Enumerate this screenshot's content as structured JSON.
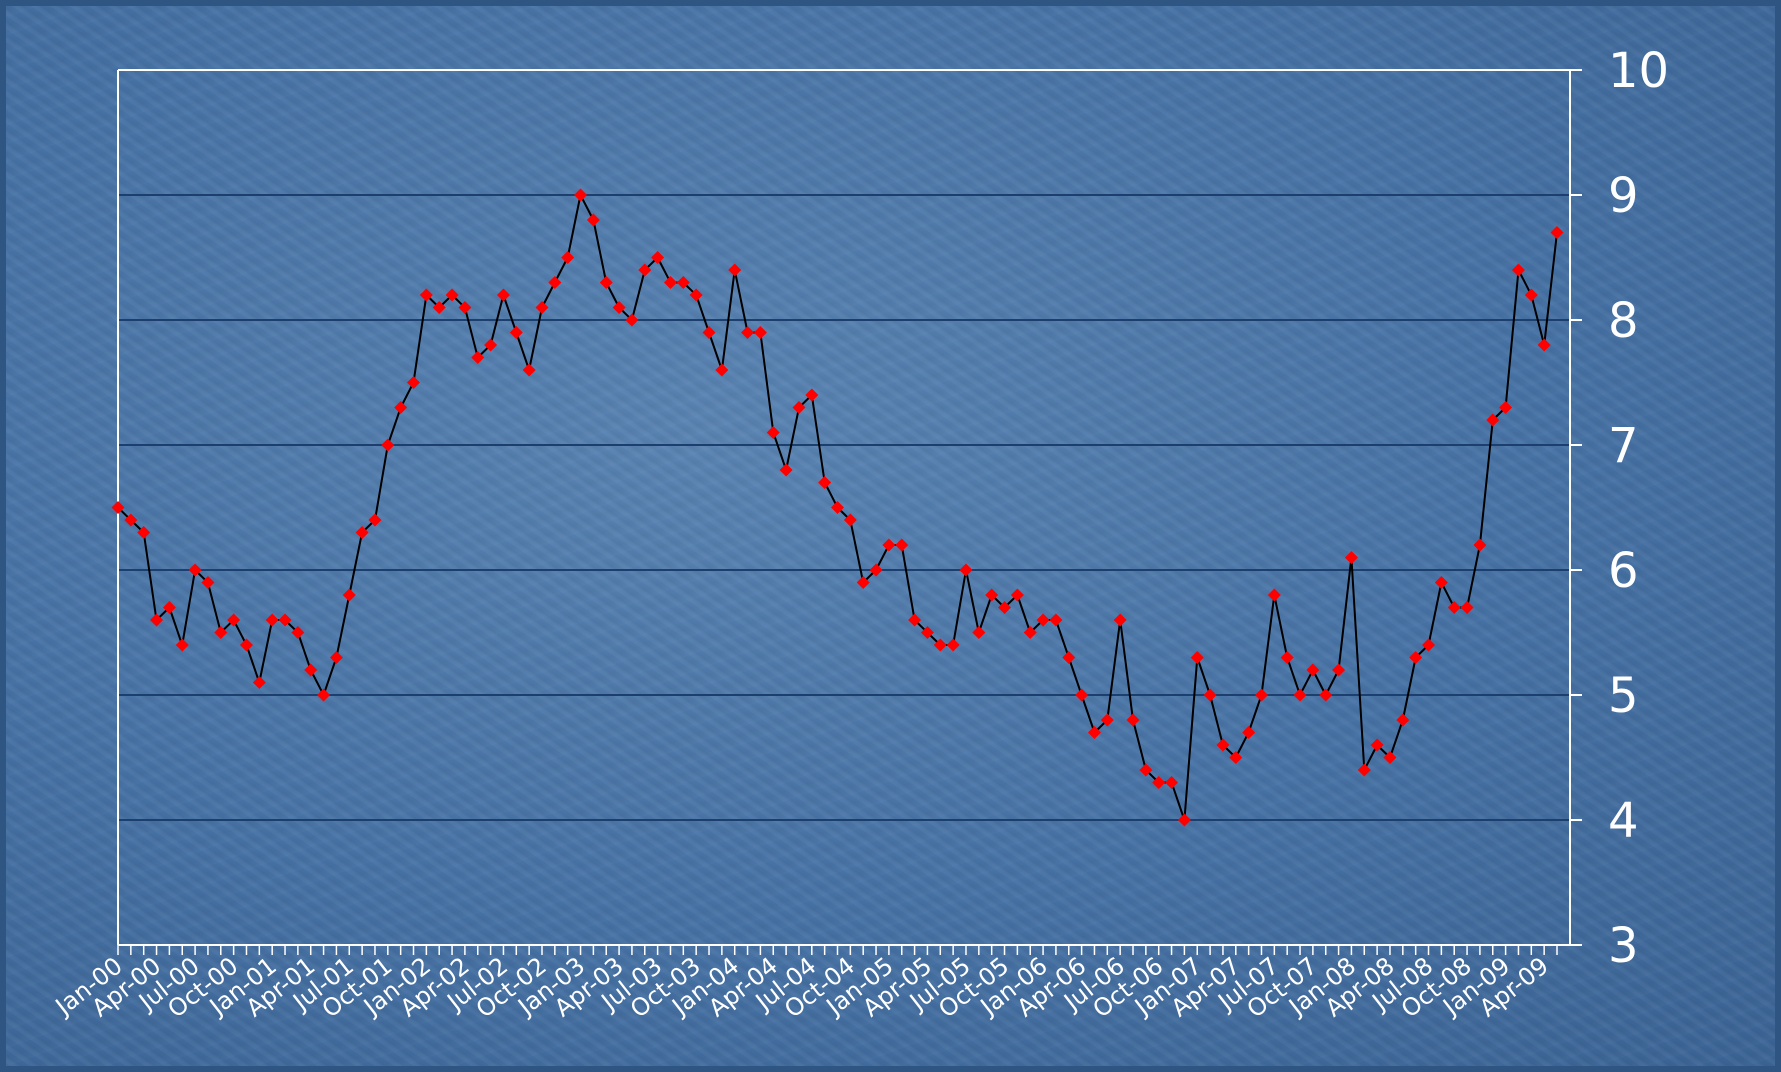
{
  "chart_data": {
    "type": "line",
    "title": "",
    "xlabel": "",
    "ylabel": "",
    "ylim": [
      3,
      10
    ],
    "y_ticks": [
      3,
      4,
      5,
      6,
      7,
      8,
      9,
      10
    ],
    "y_axis_side": "right",
    "grid": "horizontal",
    "x_labels": [
      "Jan-00",
      "Apr-00",
      "Jul-00",
      "Oct-00",
      "Jan-01",
      "Apr-01",
      "Jul-01",
      "Oct-01",
      "Jan-02",
      "Apr-02",
      "Jul-02",
      "Oct-02",
      "Jan-03",
      "Apr-03",
      "Jul-03",
      "Oct-03",
      "Jan-04",
      "Apr-04",
      "Jul-04",
      "Oct-04",
      "Jan-05",
      "Apr-05",
      "Jul-05",
      "Oct-05",
      "Jan-06",
      "Apr-06",
      "Jul-06",
      "Oct-06",
      "Jan-07",
      "Apr-07",
      "Jul-07",
      "Oct-07",
      "Jan-08",
      "Apr-08",
      "Jul-08",
      "Oct-08",
      "Jan-09",
      "Apr-09"
    ],
    "x_label_every_months": 3,
    "start_month": "Jan-00",
    "colors": {
      "line": "#000000",
      "marker": "#ff0000",
      "gridline": "#1d3f6e",
      "axis": "#ffffff",
      "text": "#ffffff"
    },
    "series": [
      {
        "values": [
          6.5,
          6.4,
          6.3,
          5.6,
          5.7,
          5.4,
          6.0,
          5.9,
          5.5,
          5.6,
          5.4,
          5.1,
          5.6,
          5.6,
          5.5,
          5.2,
          5.0,
          5.3,
          5.8,
          6.3,
          6.4,
          7.0,
          7.3,
          7.5,
          8.2,
          8.1,
          8.2,
          8.1,
          7.7,
          7.8,
          8.2,
          7.9,
          7.6,
          8.1,
          8.3,
          8.5,
          9.0,
          8.8,
          8.3,
          8.1,
          8.0,
          8.4,
          8.5,
          8.3,
          8.3,
          8.2,
          7.9,
          7.6,
          8.4,
          7.9,
          7.9,
          7.1,
          6.8,
          7.3,
          7.4,
          6.7,
          6.5,
          6.4,
          5.9,
          6.0,
          6.2,
          6.2,
          5.6,
          5.5,
          5.4,
          5.4,
          6.0,
          5.5,
          5.8,
          5.7,
          5.8,
          5.5,
          5.6,
          5.6,
          5.3,
          5.0,
          4.7,
          4.8,
          5.6,
          4.8,
          4.4,
          4.3,
          4.3,
          4.0,
          5.3,
          5.0,
          4.6,
          4.5,
          4.7,
          5.0,
          5.8,
          5.3,
          5.0,
          5.2,
          5.0,
          5.2,
          6.1,
          4.4,
          4.6,
          4.5,
          4.8,
          5.3,
          5.4,
          5.9,
          5.7,
          5.7,
          6.2,
          7.2,
          7.3,
          8.4,
          8.2,
          7.8,
          8.7
        ]
      }
    ]
  }
}
